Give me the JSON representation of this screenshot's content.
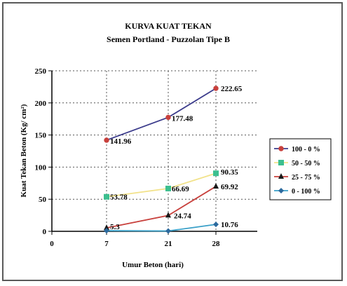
{
  "chart_data": {
    "type": "line",
    "title": "KURVA KUAT TEKAN",
    "subtitle": "Semen Portland - Puzzolan Tipe B",
    "xlabel": "Umur Beton (hari)",
    "ylabel": "Kuat Tekan Beton (Kg/ cm²)",
    "x_ticks": [
      "0",
      "7",
      "21",
      "28"
    ],
    "categories": [
      "7",
      "21",
      "28"
    ],
    "ylim": [
      0,
      250
    ],
    "y_ticks": [
      "0",
      "50",
      "100",
      "150",
      "200",
      "250"
    ],
    "grid": true,
    "legend_position": "right",
    "series": [
      {
        "name": "100 - 0 %",
        "values": [
          141.96,
          177.48,
          222.65
        ],
        "labels": [
          "141.96",
          "177.48",
          "222.65"
        ],
        "color": "#c8403c",
        "line_color": "#3c3c8c",
        "marker": "circle"
      },
      {
        "name": "50 - 50 %",
        "values": [
          53.78,
          66.69,
          90.35
        ],
        "labels": [
          "53.78",
          "66.69",
          "90.35"
        ],
        "color": "#3cbf8f",
        "line_color": "#f2e28a",
        "marker": "square"
      },
      {
        "name": "25 - 75 %",
        "values": [
          5.3,
          24.74,
          69.92
        ],
        "labels": [
          "5.3",
          "24.74",
          "69.92"
        ],
        "color": "#1a1a1a",
        "line_color": "#c8403c",
        "marker": "triangle"
      },
      {
        "name": "0 - 100 %",
        "values": [
          1.0,
          0.5,
          10.76
        ],
        "labels": [
          "",
          "",
          "10.76"
        ],
        "color": "#2c6a9e",
        "line_color": "#3aa0c8",
        "marker": "diamond"
      }
    ]
  }
}
